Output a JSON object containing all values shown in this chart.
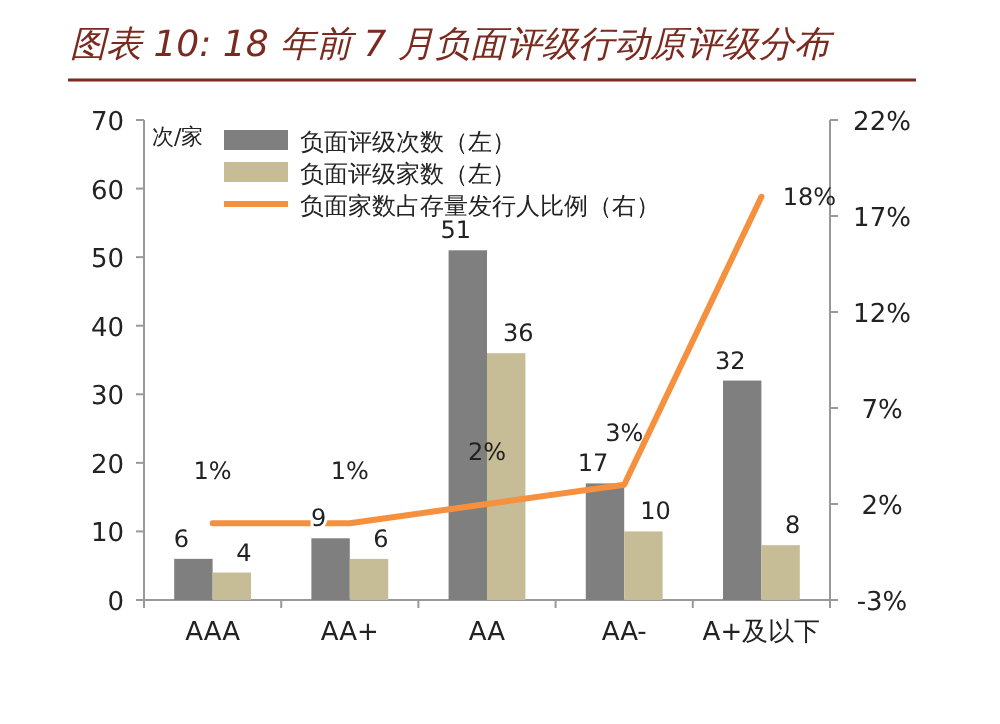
{
  "chart_data": {
    "type": "bar",
    "title": "图表 10: 18 年前 7 月负面评级行动原评级分布",
    "ylabel": "次/家",
    "categories": [
      "AAA",
      "AA+",
      "AA",
      "AA-",
      "A+及以下"
    ],
    "series": [
      {
        "name": "负面评级次数（左）",
        "color": "#7f7f7f",
        "values": [
          6,
          9,
          51,
          17,
          32
        ]
      },
      {
        "name": "负面评级家数（左）",
        "color": "#c6bd96",
        "values": [
          4,
          6,
          36,
          10,
          8
        ]
      },
      {
        "type": "line",
        "axis": "y2",
        "name": "负面家数占存量发行人比例（右）",
        "color": "#f5913e",
        "values": [
          1,
          1,
          2,
          3,
          18
        ],
        "value_labels": [
          "1%",
          "1%",
          "2%",
          "3%",
          "18%"
        ]
      }
    ],
    "ylim": [
      0,
      70
    ],
    "yticks": [
      0,
      10,
      20,
      30,
      40,
      50,
      60,
      70
    ],
    "y2lim": [
      -3,
      22
    ],
    "y2ticks": [
      {
        "value": -3,
        "label": "-3%"
      },
      {
        "value": 2,
        "label": "2%"
      },
      {
        "value": 7,
        "label": "7%"
      },
      {
        "value": 12,
        "label": "12%"
      },
      {
        "value": 17,
        "label": "17%"
      },
      {
        "value": 22,
        "label": "22%"
      }
    ],
    "data_labels": true,
    "legend": "top left",
    "grid": false
  }
}
